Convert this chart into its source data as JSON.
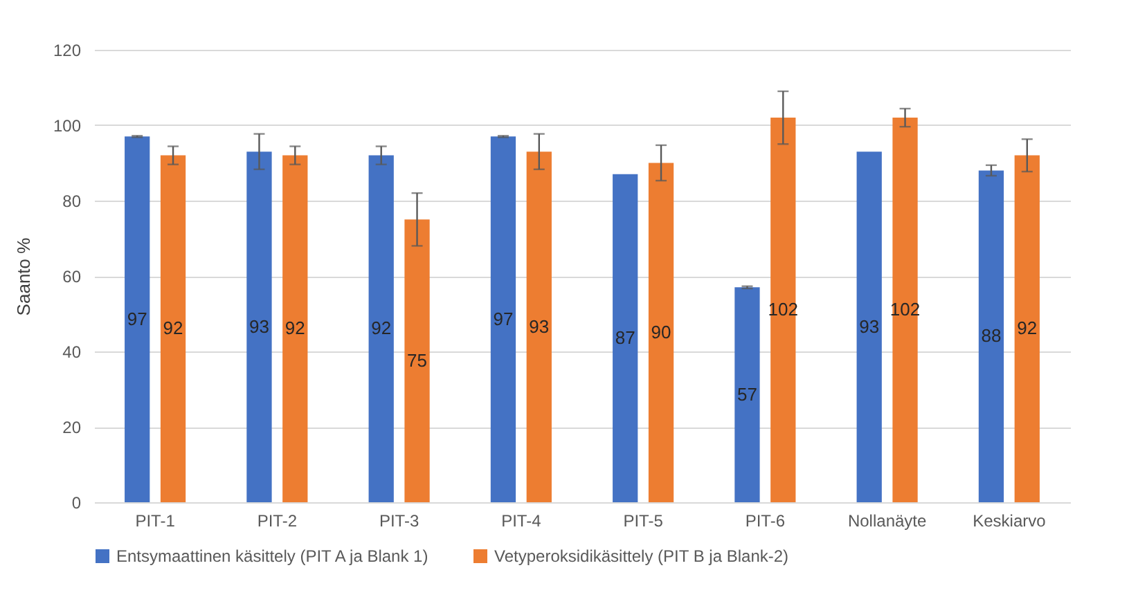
{
  "chart_data": {
    "type": "bar",
    "ylabel": "Saanto %",
    "categories": [
      "PIT-1",
      "PIT-2",
      "PIT-3",
      "PIT-4",
      "PIT-5",
      "PIT-6",
      "Nollanäyte",
      "Keskiarvo"
    ],
    "series": [
      {
        "name": "Entsymaattinen käsittely (PIT A ja Blank 1)",
        "color": "#4472c4",
        "values": [
          97,
          93,
          92,
          97,
          87,
          57,
          93,
          88
        ],
        "errors": [
          0.2,
          4.7,
          2.4,
          0.2,
          null,
          0.3,
          null,
          1.4
        ]
      },
      {
        "name": "Vetyperoksidikäsittely (PIT B ja Blank-2)",
        "color": "#ed7d31",
        "values": [
          92,
          92,
          75,
          93,
          90,
          102,
          102,
          92
        ],
        "errors": [
          2.4,
          2.4,
          7,
          4.7,
          4.7,
          7,
          2.4,
          4.3
        ]
      }
    ],
    "ylim": [
      0,
      120
    ],
    "yticks": [
      0,
      20,
      40,
      60,
      80,
      100,
      120
    ],
    "grid": "y",
    "legend": "bottom",
    "data_labels": true
  }
}
